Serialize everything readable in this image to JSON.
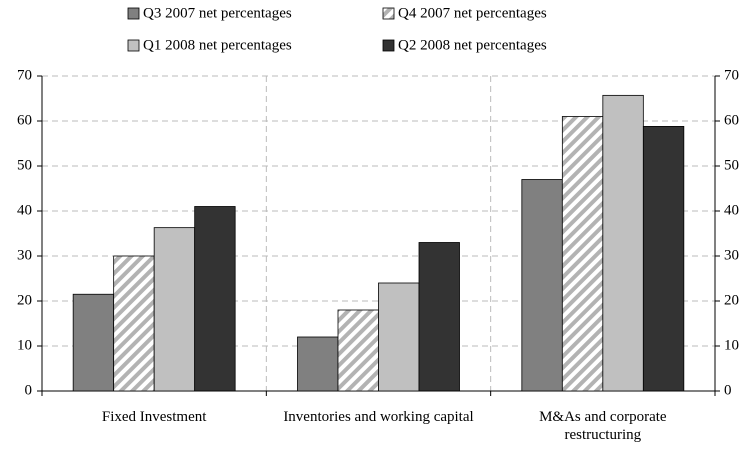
{
  "chart_data": {
    "type": "bar",
    "categories": [
      "Fixed Investment",
      "Inventories and working capital",
      "M&As and corporate restructuring"
    ],
    "series": [
      {
        "name": "Q3 2007 net percentages",
        "color": "#808080",
        "values": [
          21.5,
          12,
          47
        ]
      },
      {
        "name": "Q4 2007 net percentages",
        "color": "#b3b3b3",
        "pattern": "hatch",
        "values": [
          30,
          18,
          61
        ]
      },
      {
        "name": "Q1 2008 net percentages",
        "color": "#c0c0c0",
        "values": [
          36.3,
          24,
          65.7
        ]
      },
      {
        "name": "Q2 2008 net percentages",
        "color": "#333333",
        "values": [
          41,
          33,
          58.8
        ]
      }
    ],
    "ylim": [
      0,
      70
    ],
    "yticks": [
      0,
      10,
      20,
      30,
      40,
      50,
      60,
      70
    ],
    "y2lim": [
      0,
      70
    ],
    "y2ticks": [
      0,
      10,
      20,
      30,
      40,
      50,
      60,
      70
    ],
    "grid": true
  }
}
